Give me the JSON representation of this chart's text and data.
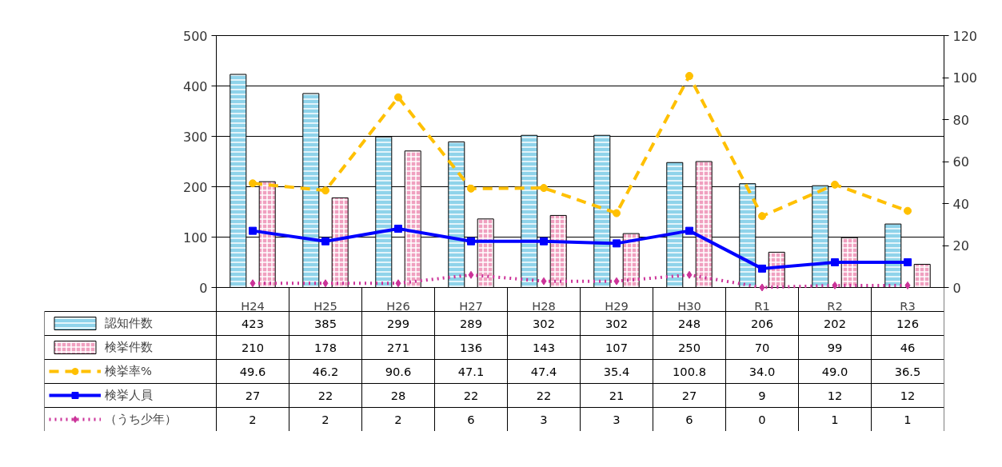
{
  "chart_data": {
    "type": "bar",
    "categories": [
      "H24",
      "H25",
      "H26",
      "H27",
      "H28",
      "H29",
      "H30",
      "R1",
      "R2",
      "R3"
    ],
    "series": [
      {
        "name": "認知件数",
        "color": "#8fd3ea",
        "values": [
          423,
          385,
          299,
          289,
          302,
          302,
          248,
          206,
          202,
          126
        ]
      },
      {
        "name": "検挙件数",
        "color": "#f0a0c0",
        "values": [
          210,
          178,
          271,
          136,
          143,
          107,
          250,
          70,
          99,
          46
        ]
      },
      {
        "name": "検挙率%",
        "type": "line",
        "axis": "y2",
        "color": "#ffc000",
        "line_style": "dashed",
        "marker": "circle",
        "values": [
          49.6,
          46.2,
          90.6,
          47.1,
          47.4,
          35.4,
          100.8,
          34.0,
          49.0,
          36.5
        ],
        "value_labels": [
          "49.6",
          "46.2",
          "90.6",
          "47.1",
          "47.4",
          "35.4",
          "100.8",
          "34.0",
          "49.0",
          "36.5"
        ]
      },
      {
        "name": "検挙人員",
        "type": "line",
        "axis": "y2",
        "color": "#0000ff",
        "line_style": "solid",
        "marker": "square",
        "values": [
          27,
          22,
          28,
          22,
          22,
          21,
          27,
          9,
          12,
          12
        ]
      },
      {
        "name": "（うち少年）",
        "type": "line",
        "axis": "y2",
        "color": "#cc3399",
        "line_style": "dotted",
        "marker": "diamond",
        "values": [
          2,
          2,
          2,
          6,
          3,
          3,
          6,
          0,
          1,
          1
        ]
      }
    ],
    "ylim": [
      0,
      500
    ],
    "yticks": [
      0,
      100,
      200,
      300,
      400,
      500
    ],
    "y2lim": [
      0,
      120
    ],
    "y2ticks": [
      0,
      20,
      40,
      60,
      80,
      100,
      120
    ],
    "grid": "y",
    "legend": "bottom",
    "data_labels": true
  }
}
